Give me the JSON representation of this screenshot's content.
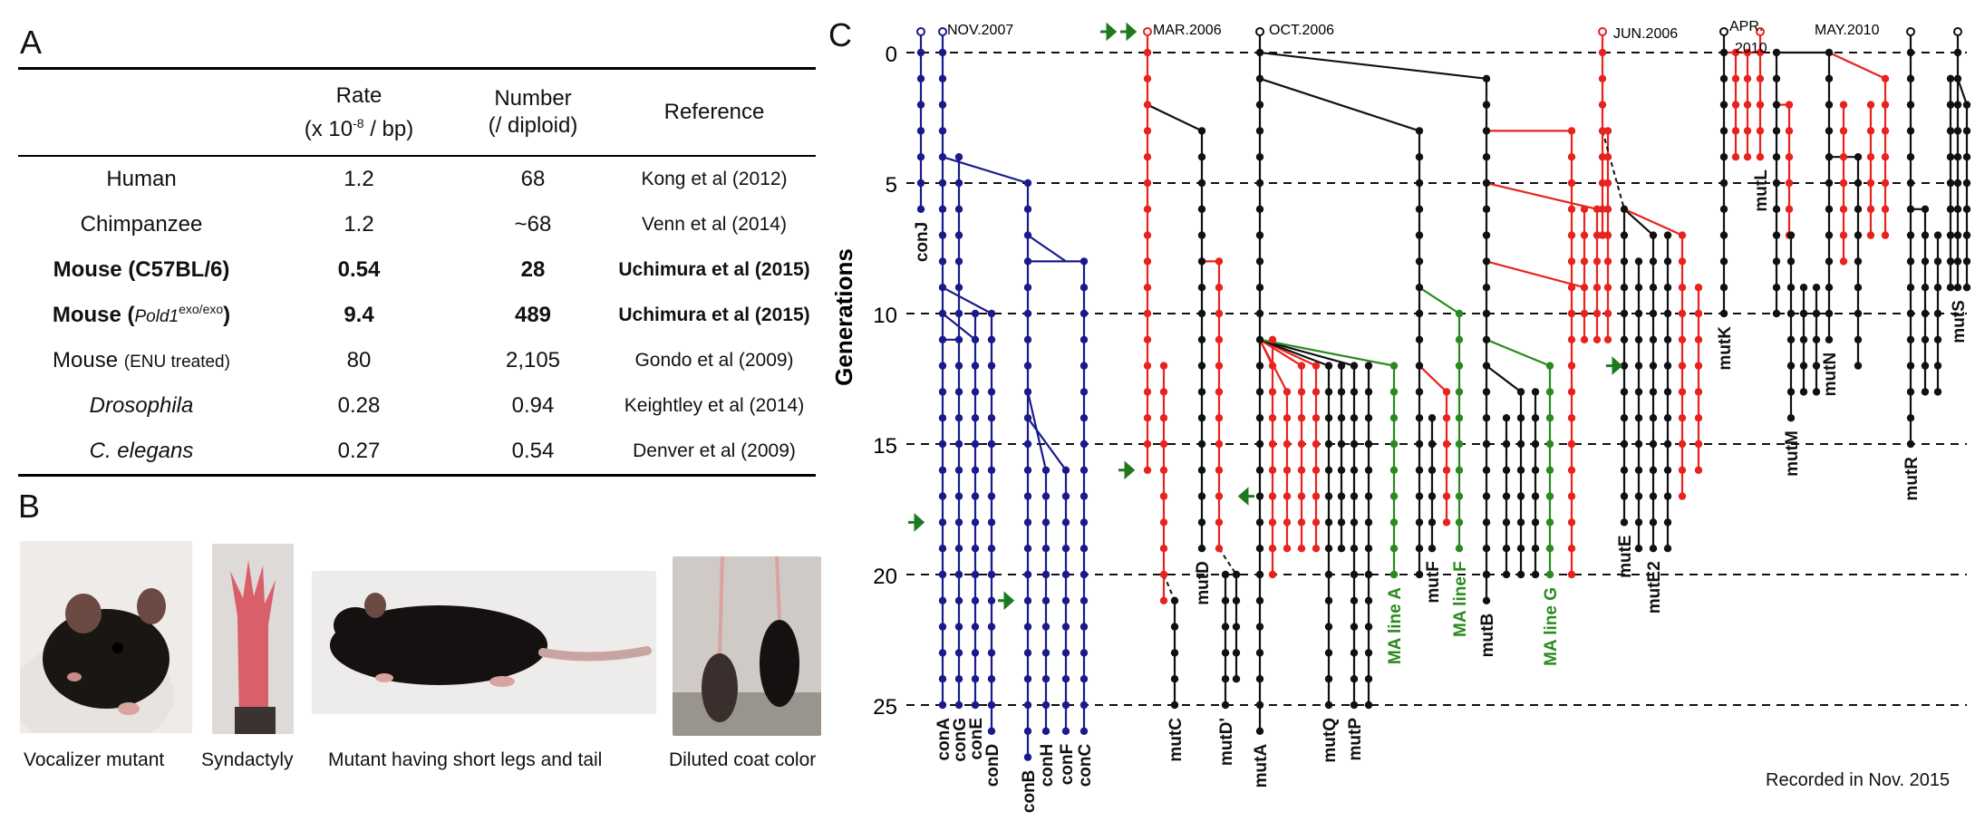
{
  "panels": {
    "a": "A",
    "b": "B",
    "c": "C"
  },
  "table": {
    "header": {
      "rate_line1": "Rate",
      "rate_line2": "(x 10-8 / bp)",
      "number_line1": "Number",
      "number_line2": "(/ diploid)",
      "reference": "Reference"
    },
    "rows": [
      {
        "organism": "Human",
        "rate": "1.2",
        "number": "68",
        "reference": "Kong et al (2012)"
      },
      {
        "organism": "Chimpanzee",
        "rate": "1.2",
        "number": "~68",
        "reference": "Venn et al (2014)"
      },
      {
        "organism": "Mouse (C57BL/6)",
        "rate": "0.54",
        "number": "28",
        "reference": "Uchimura et al (2015)"
      },
      {
        "organism_main": "Mouse (",
        "organism_ital": "Pold1",
        "organism_sup": "exo/exo",
        "organism_end": ")",
        "rate": "9.4",
        "number": "489",
        "reference": "Uchimura et al (2015)"
      },
      {
        "organism_main": "Mouse",
        "organism_small": "(ENU treated)",
        "rate": "80",
        "number": "2,105",
        "reference": "Gondo et al (2009)"
      },
      {
        "organism": "Drosophila",
        "rate": "0.28",
        "number": "0.94",
        "reference": "Keightley et al (2014)"
      },
      {
        "organism": "C. elegans",
        "rate": "0.27",
        "number": "0.54",
        "reference": "Denver et al (2009)"
      }
    ]
  },
  "photos": {
    "captions": [
      "Vocalizer mutant",
      "Syndactyly",
      "Mutant having short legs and tail",
      "Diluted coat color"
    ]
  },
  "pedigree": {
    "ylabel": "Generations",
    "yticks": [
      "0",
      "5",
      "10",
      "15",
      "20",
      "25"
    ],
    "dates": [
      "NOV.2007",
      "MAR.2006",
      "OCT.2006",
      "JUN.2006",
      "APR.",
      "2010",
      "MAY.2010"
    ],
    "colors": {
      "control": "#1a1a8c",
      "mutant_red": "#e8231f",
      "mutant_black": "#111111",
      "ma_line": "#2a8a1f",
      "arrow": "#1f7a1f"
    },
    "labels": {
      "conJ": "conJ",
      "conA": "conA",
      "conG": "conG",
      "conE": "conE",
      "conD": "conD",
      "conB": "conB",
      "conH": "conH",
      "conF": "conF",
      "conC": "conC",
      "mutC": "mutC",
      "mutD": "mutD",
      "mutDp": "mutD'",
      "mutA": "mutA",
      "mutQ": "mutQ",
      "mutP": "mutP",
      "maA": "MA line A",
      "mutF": "mutF",
      "maF": "MA line F",
      "mutB": "mutB",
      "maG": "MA line G",
      "mutE": "mutE",
      "mutE2": "mutE2",
      "mutK": "mutK",
      "mutL": "mutL",
      "mutM": "mutM",
      "mutN": "mutN",
      "mutR": "mutR",
      "mutS": "mutS"
    },
    "footnote": "Recorded in Nov. 2015"
  }
}
